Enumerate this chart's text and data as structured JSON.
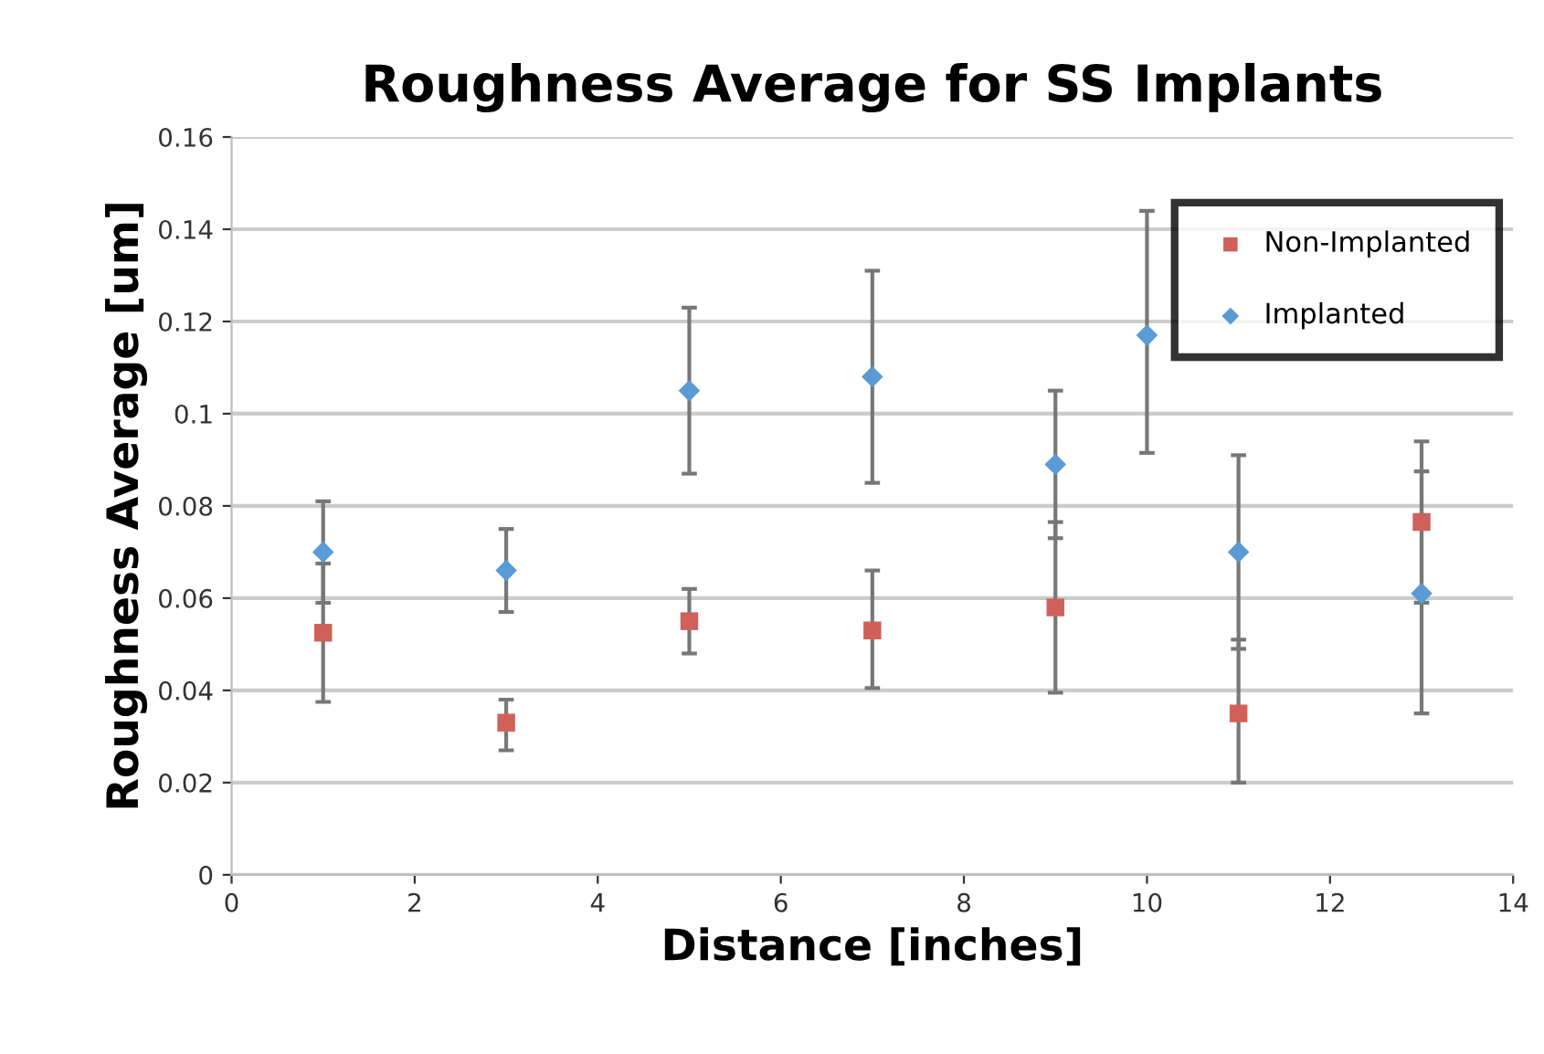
{
  "chart_data": {
    "type": "scatter",
    "title": "Roughness Average for SS Implants",
    "xlabel": "Distance [inches]",
    "ylabel": "Roughness Average [um]",
    "xlim": [
      0,
      14
    ],
    "xticks": [
      0,
      2,
      4,
      6,
      8,
      10,
      12,
      14
    ],
    "ylim": [
      0,
      0.16
    ],
    "yticks": [
      0,
      0.02,
      0.04,
      0.06,
      0.08,
      0.1,
      0.12,
      0.14,
      0.16
    ],
    "grid": "y",
    "legend": "top right",
    "series": [
      {
        "name": "Non-Implanted",
        "color": "#d0605a",
        "marker": "square",
        "x": [
          1,
          3,
          5,
          7,
          9,
          11,
          13
        ],
        "values": [
          0.0525,
          0.033,
          0.055,
          0.053,
          0.058,
          0.035,
          0.0765
        ],
        "errors": [
          [
            0.0375,
            0.0675
          ],
          [
            0.027,
            0.038
          ],
          [
            0.048,
            0.062
          ],
          [
            0.0405,
            0.066
          ],
          [
            0.0395,
            0.0765
          ],
          [
            0.02,
            0.051
          ],
          [
            0.059,
            0.094
          ]
        ]
      },
      {
        "name": "Implanted",
        "color": "#5b9bd5",
        "marker": "diamond",
        "x": [
          1,
          3,
          5,
          7,
          9,
          10,
          11,
          13
        ],
        "values": [
          0.07,
          0.066,
          0.105,
          0.108,
          0.089,
          0.117,
          0.07,
          0.061
        ],
        "errors": [
          [
            0.059,
            0.081
          ],
          [
            0.057,
            0.075
          ],
          [
            0.087,
            0.123
          ],
          [
            0.085,
            0.131
          ],
          [
            0.073,
            0.105
          ],
          [
            0.0915,
            0.144
          ],
          [
            0.049,
            0.091
          ],
          [
            0.035,
            0.0875
          ]
        ]
      }
    ]
  }
}
